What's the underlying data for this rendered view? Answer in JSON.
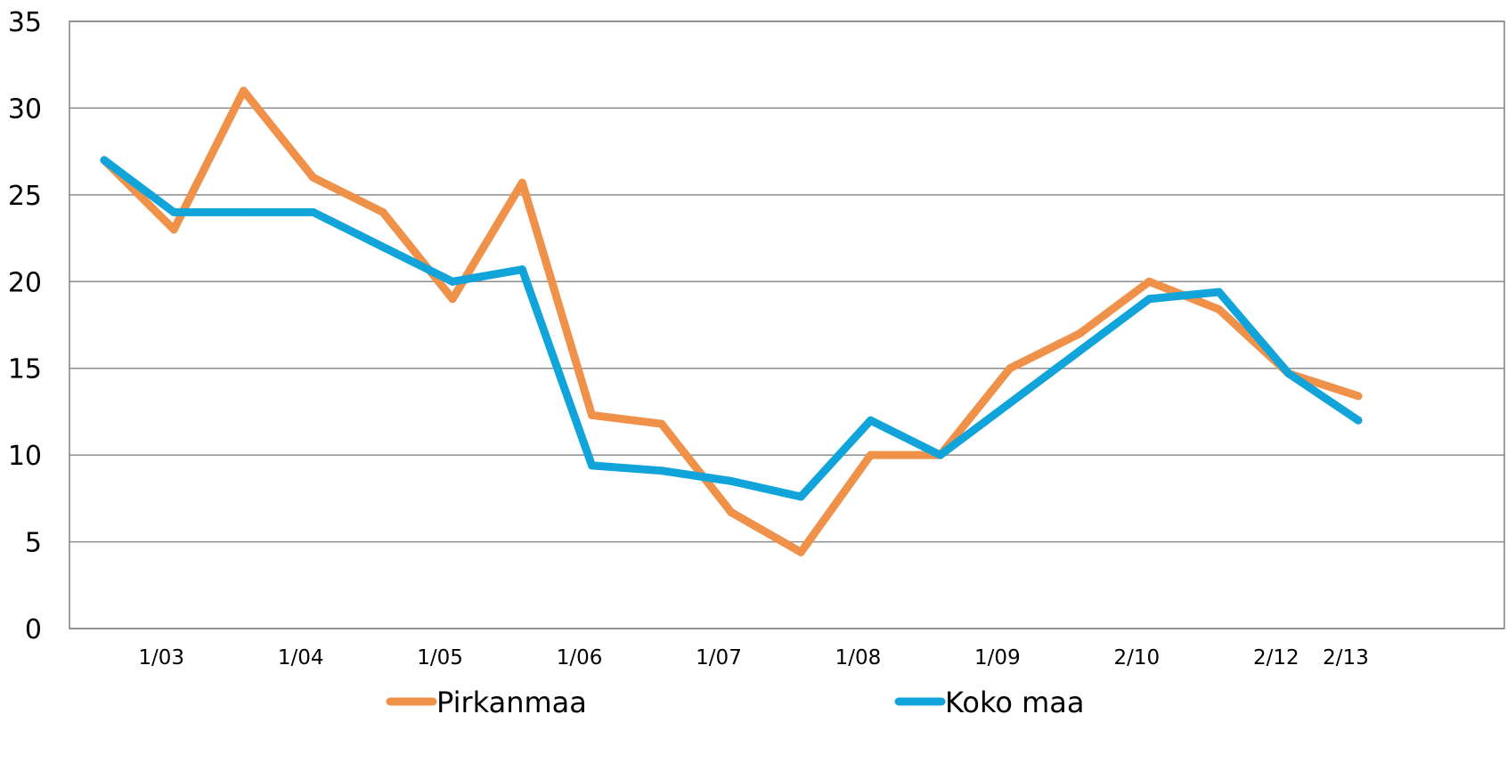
{
  "chart_data": {
    "type": "line",
    "title": "",
    "xlabel": "",
    "ylabel": "",
    "ylim": [
      0,
      35
    ],
    "yticks": [
      0,
      5,
      10,
      15,
      20,
      25,
      30,
      35
    ],
    "x_tick_labels": [
      "1/03",
      "1/04",
      "1/05",
      "1/06",
      "1/07",
      "1/08",
      "1/09",
      "2/10",
      "2/12",
      "2/13"
    ],
    "grid": "horizontal",
    "legend_position": "bottom",
    "series": [
      {
        "name": "Pirkanmaa",
        "color": "#F0914A",
        "values": [
          27,
          23,
          31,
          26,
          24,
          19,
          25.7,
          12.3,
          11.8,
          6.7,
          4.4,
          10,
          10,
          15,
          17,
          20,
          18.4,
          14.7,
          13.4
        ]
      },
      {
        "name": "Koko maa",
        "color": "#10A4DA",
        "values": [
          27,
          24,
          24,
          24,
          22,
          20,
          20.7,
          9.4,
          9.1,
          8.5,
          7.6,
          12,
          10,
          13,
          16,
          19,
          19.4,
          14.7,
          12
        ]
      }
    ]
  }
}
